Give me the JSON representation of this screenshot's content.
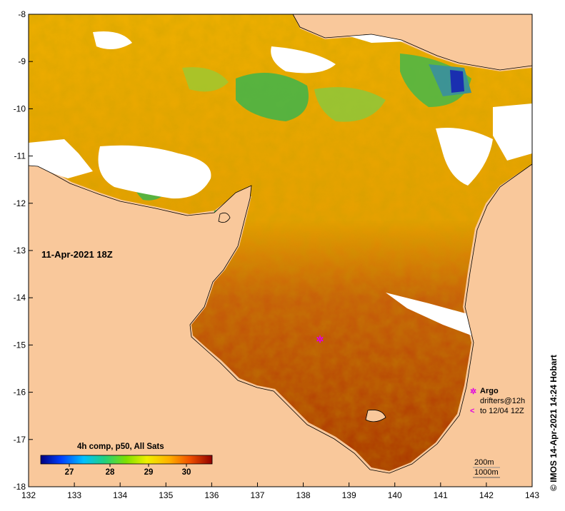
{
  "map": {
    "date_label": "11-Apr-2021 18Z",
    "x_ticks": [
      "132",
      "133",
      "134",
      "135",
      "136",
      "137",
      "138",
      "139",
      "140",
      "141",
      "142",
      "143"
    ],
    "y_ticks": [
      "-8",
      "-9",
      "-10",
      "-11",
      "-12",
      "-13",
      "-14",
      "-15",
      "-16",
      "-17",
      "-18"
    ],
    "colors": {
      "land": "#f9c89b",
      "nodata": "#ffffff",
      "warm": "#b23a05",
      "mid": "#f5b400",
      "cool": "#3fb54a"
    }
  },
  "colorbar": {
    "title": "4h comp, p50, All Sats",
    "ticks": [
      "27",
      "28",
      "29",
      "30"
    ]
  },
  "legend": {
    "argo_label": "Argo",
    "drifters_line1": "drifters@12h",
    "drifters_line2": "to 12/04 12Z",
    "argo_color": "#e000e0"
  },
  "depth_legend": {
    "line1": "200m",
    "line2": "1000m"
  },
  "credit": "© IMOS 14-Apr-2021 14:24 Hobart"
}
